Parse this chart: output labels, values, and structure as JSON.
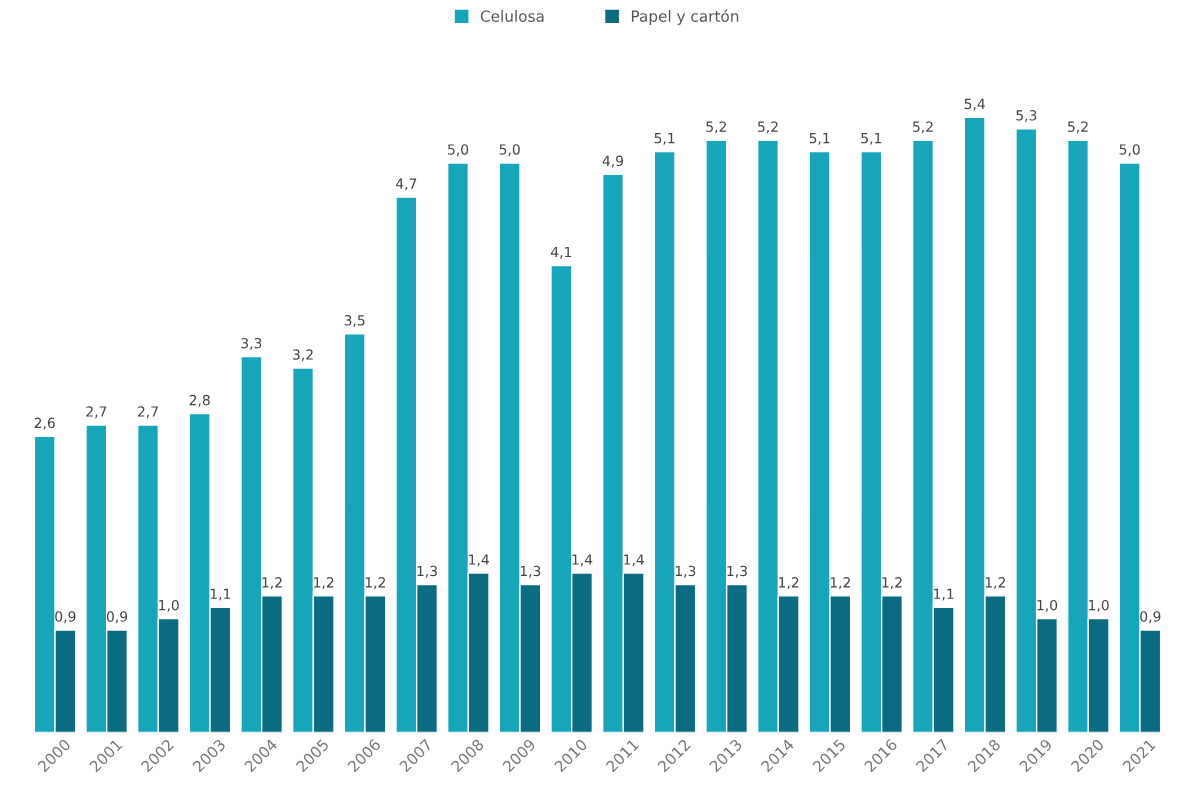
{
  "chart_data": {
    "type": "bar",
    "categories": [
      "2000",
      "2001",
      "2002",
      "2003",
      "2004",
      "2005",
      "2006",
      "2007",
      "2008",
      "2009",
      "2010",
      "2011",
      "2012",
      "2013",
      "2014",
      "2015",
      "2016",
      "2017",
      "2018",
      "2019",
      "2020",
      "2021"
    ],
    "series": [
      {
        "name": "Celulosa",
        "color": "#17a6b9",
        "values": [
          2.6,
          2.7,
          2.7,
          2.8,
          3.3,
          3.2,
          3.5,
          4.7,
          5.0,
          5.0,
          4.1,
          4.9,
          5.1,
          5.2,
          5.2,
          5.1,
          5.1,
          5.2,
          5.4,
          5.3,
          5.2,
          5.0
        ],
        "value_labels": [
          "2,6",
          "2,7",
          "2,7",
          "2,8",
          "3,3",
          "3,2",
          "3,5",
          "4,7",
          "5,0",
          "5,0",
          "4,1",
          "4,9",
          "5,1",
          "5,2",
          "5,2",
          "5,1",
          "5,1",
          "5,2",
          "5,4",
          "5,3",
          "5,2",
          "5,0"
        ]
      },
      {
        "name": "Papel y cartón",
        "color": "#0b6b80",
        "values": [
          0.9,
          0.9,
          1.0,
          1.1,
          1.2,
          1.2,
          1.2,
          1.3,
          1.4,
          1.3,
          1.4,
          1.4,
          1.3,
          1.3,
          1.2,
          1.2,
          1.2,
          1.1,
          1.2,
          1.0,
          1.0,
          0.9
        ],
        "value_labels": [
          "0,9",
          "0,9",
          "1,0",
          "1,1",
          "1,2",
          "1,2",
          "1,2",
          "1,3",
          "1,4",
          "1,3",
          "1,4",
          "1,4",
          "1,3",
          "1,3",
          "1,2",
          "1,2",
          "1,2",
          "1,1",
          "1,2",
          "1,0",
          "1,0",
          "0,9"
        ]
      }
    ],
    "legend": "top",
    "grid": false
  }
}
